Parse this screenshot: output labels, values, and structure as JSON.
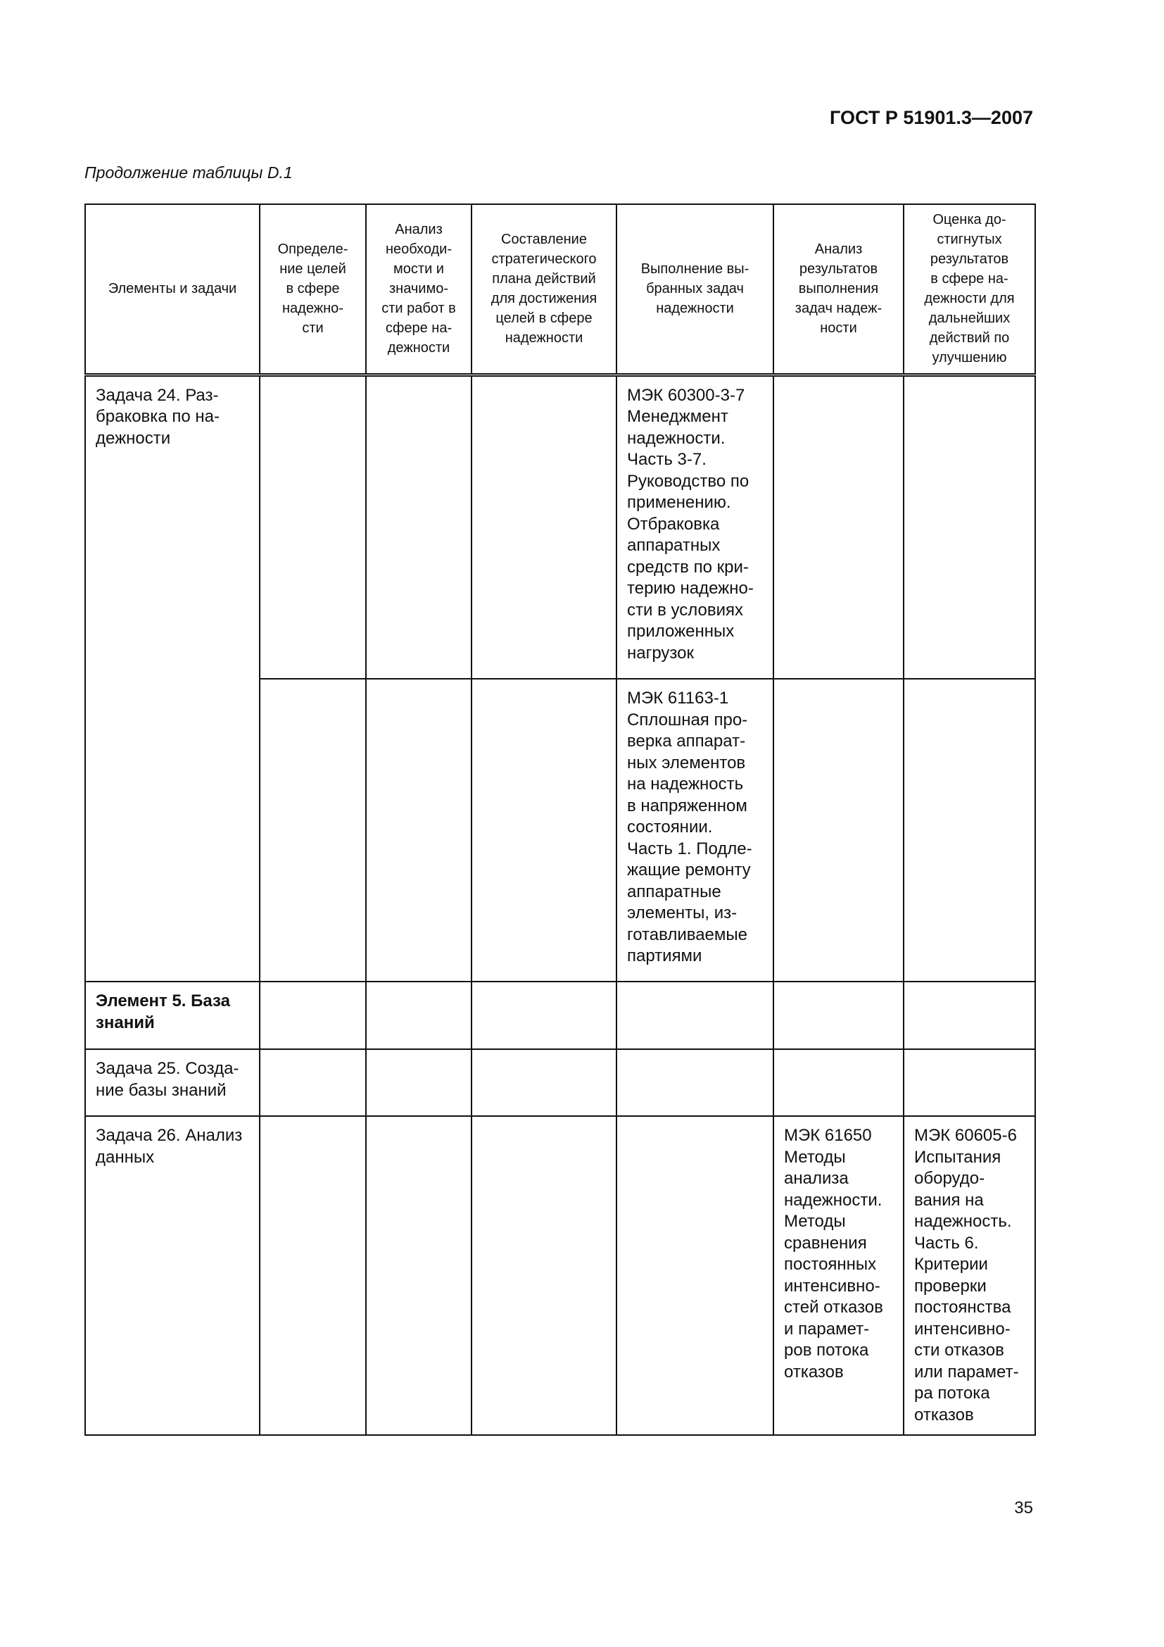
{
  "header": {
    "doc_id": "ГОСТ Р 51901.3—2007"
  },
  "caption": "Продолжение таблицы D.1",
  "table": {
    "columns": [
      "Элементы и задачи",
      "Определе-\nние целей\nв сфере\nнадежно-\nсти",
      "Анализ\nнеобходи-\nмости и\nзначимо-\nсти работ в\nсфере на-\nдежности",
      "Составление\nстратегического\nплана действий\nдля достижения\nцелей в сфере\nнадежности",
      "Выполнение вы-\nбранных задач\nнадежности",
      "Анализ\nрезультатов\nвыполнения\nзадач надеж-\nности",
      "Оценка до-\nстигнутых\nрезультатов\nв сфере на-\nдежности для\nдальнейших\nдействий по\nулучшению"
    ],
    "rows": [
      {
        "element": "Задача 24. Раз-\nбраковка по на-\nдежности",
        "cells": [
          "",
          "",
          "",
          "МЭК 60300-3-7\nМенеджмент\nнадежности.\nЧасть 3-7.\nРуководство по\nприменению.\nОтбраковка\nаппаратных\nсредств по кри-\nтерию надежно-\nсти в условиях\nприложенных\nнагрузок",
          "",
          ""
        ]
      },
      {
        "element": "",
        "cells": [
          "",
          "",
          "",
          "МЭК 61163-1\nСплошная про-\nверка аппарат-\nных элементов\nна надежность\nв напряженном\nсостоянии.\nЧасть 1. Подле-\nжащие ремонту\nаппаратные\nэлементы, из-\nготавливаемые\nпартиями",
          "",
          ""
        ]
      },
      {
        "element": "Элемент 5. База\nзнаний",
        "bold": true,
        "cells": [
          "",
          "",
          "",
          "",
          "",
          ""
        ]
      },
      {
        "element": "Задача 25. Созда-\nние базы знаний",
        "cells": [
          "",
          "",
          "",
          "",
          "",
          ""
        ]
      },
      {
        "element": "Задача 26. Анализ\nданных",
        "cells": [
          "",
          "",
          "",
          "",
          "МЭК 61650\nМетоды\nанализа\nнадежности.\nМетоды\nсравнения\nпостоянных\nинтенсивно-\nстей отказов\nи парамет-\nров потока\nотказов",
          "МЭК 60605-6\nИспытания\nоборудо-\nвания на\nнадежность.\nЧасть 6.\nКритерии\nпроверки\nпостоянства\nинтенсивно-\nсти отказов\nили парамет-\nра потока\nотказов"
        ]
      }
    ]
  },
  "page_number": "35"
}
